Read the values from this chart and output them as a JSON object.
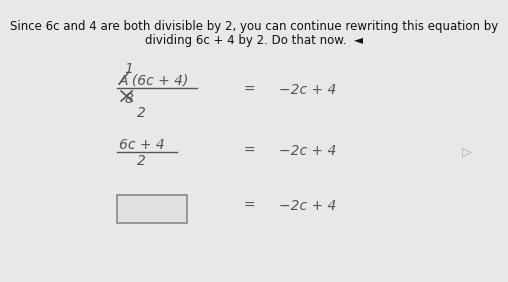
{
  "bg_color": "#d8d8d8",
  "content_bg": "#e8e8e8",
  "title_line1": "Since 6c and 4 are both divisible by 2, you can continue rewriting this equation by",
  "title_line2": "dividing 6c + 4 by 2. Do that now.  ◄︎",
  "title_fontsize": 8.5,
  "title_color": "#111111",
  "math_color": "#555555",
  "math_fontsize": 10,
  "box_edgecolor": "#888888",
  "box_facecolor": "#e0e0e0",
  "arrow_color": "#aaaaaa"
}
